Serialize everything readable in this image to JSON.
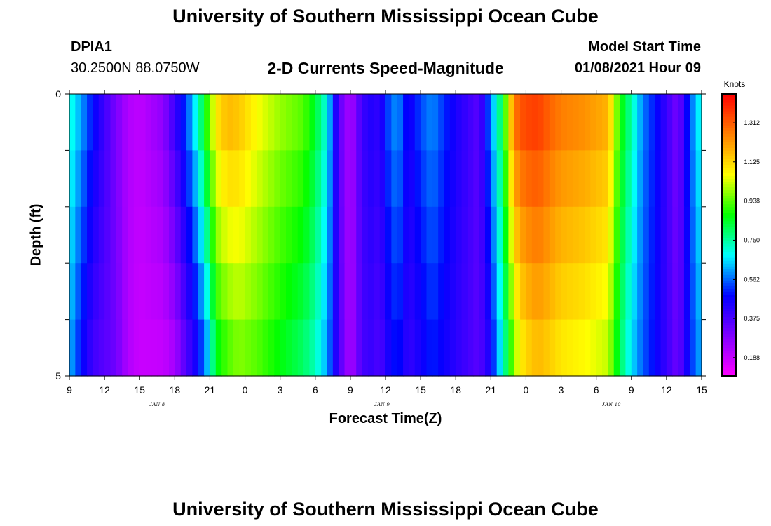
{
  "title_top": "University of Southern Mississippi Ocean Cube",
  "title_bottom": "University of Southern Mississippi Ocean Cube",
  "station": {
    "id": "DPIA1",
    "coords": "30.2500N 88.0750W"
  },
  "model": {
    "label": "Model Start Time",
    "time": "01/08/2021 Hour 09"
  },
  "colors": {
    "background": "#ffffff",
    "axis": "#000000",
    "scale": [
      "#ff00ff",
      "#8000ff",
      "#0000ff",
      "#00ffff",
      "#00ff00",
      "#ffff00",
      "#ff8000",
      "#ff0000"
    ]
  },
  "chart_data": {
    "type": "heatmap",
    "title": "2-D Currents Speed-Magnitude",
    "xlabel": "Forecast Time(Z)",
    "ylabel": "Depth (ft)",
    "y_tick_labels": [
      "0",
      "5"
    ],
    "ylim": [
      0,
      5
    ],
    "x_hours_range": [
      0,
      54
    ],
    "x_ticks": [
      "9",
      "12",
      "15",
      "18",
      "21",
      "0",
      "3",
      "6",
      "9",
      "12",
      "15",
      "18",
      "21",
      "0",
      "3",
      "6",
      "9",
      "12",
      "15"
    ],
    "date_labels": [
      {
        "text": "JAN 8",
        "hour": 7.5
      },
      {
        "text": "JAN 9",
        "hour": 26.7
      },
      {
        "text": "JAN 10",
        "hour": 46.3
      }
    ],
    "colorbar": {
      "unit": "Knots",
      "range": [
        0.1,
        1.45
      ],
      "ticks": [
        {
          "label": "1.312",
          "value": 1.312
        },
        {
          "label": "1.125",
          "value": 1.125
        },
        {
          "label": "0.938",
          "value": 0.938
        },
        {
          "label": "0.750",
          "value": 0.75
        },
        {
          "label": "0.562",
          "value": 0.562
        },
        {
          "label": "0.375",
          "value": 0.375
        },
        {
          "label": "0.188",
          "value": 0.188
        }
      ]
    },
    "grid_resolution_hours": 0.5,
    "depth_levels": [
      0,
      1,
      2,
      3,
      4,
      5
    ],
    "time_profile_hours": [
      0,
      1,
      2,
      4,
      5,
      6,
      8,
      9,
      10,
      11,
      11.8,
      12.5,
      13.5,
      14.5,
      16,
      18,
      20,
      21,
      22,
      23,
      24,
      25,
      26,
      26.5,
      27,
      28,
      29,
      30,
      31,
      33,
      35,
      36,
      37,
      38,
      38.5,
      39,
      40,
      41,
      42,
      44,
      46,
      47,
      48,
      49,
      50,
      51,
      52,
      53,
      54
    ],
    "speed_surface_knots": [
      0.72,
      0.62,
      0.5,
      0.3,
      0.22,
      0.2,
      0.28,
      0.42,
      0.55,
      0.75,
      0.95,
      1.12,
      1.2,
      1.17,
      1.08,
      1.0,
      0.95,
      0.85,
      0.7,
      0.35,
      0.22,
      0.4,
      0.45,
      0.4,
      0.52,
      0.62,
      0.45,
      0.55,
      0.6,
      0.45,
      0.35,
      0.6,
      0.85,
      1.3,
      1.35,
      1.37,
      1.38,
      1.32,
      1.28,
      1.25,
      1.2,
      0.9,
      0.75,
      0.58,
      0.5,
      0.4,
      0.3,
      0.55,
      0.72
    ],
    "speed_bottom_knots": [
      0.62,
      0.48,
      0.38,
      0.32,
      0.22,
      0.18,
      0.18,
      0.22,
      0.35,
      0.45,
      0.6,
      0.82,
      0.9,
      0.95,
      0.92,
      0.85,
      0.78,
      0.72,
      0.6,
      0.38,
      0.22,
      0.38,
      0.4,
      0.35,
      0.42,
      0.5,
      0.4,
      0.45,
      0.5,
      0.42,
      0.35,
      0.45,
      0.7,
      0.95,
      1.05,
      1.1,
      1.15,
      1.12,
      1.08,
      1.05,
      1.0,
      0.8,
      0.65,
      0.55,
      0.48,
      0.4,
      0.32,
      0.5,
      0.62
    ]
  }
}
